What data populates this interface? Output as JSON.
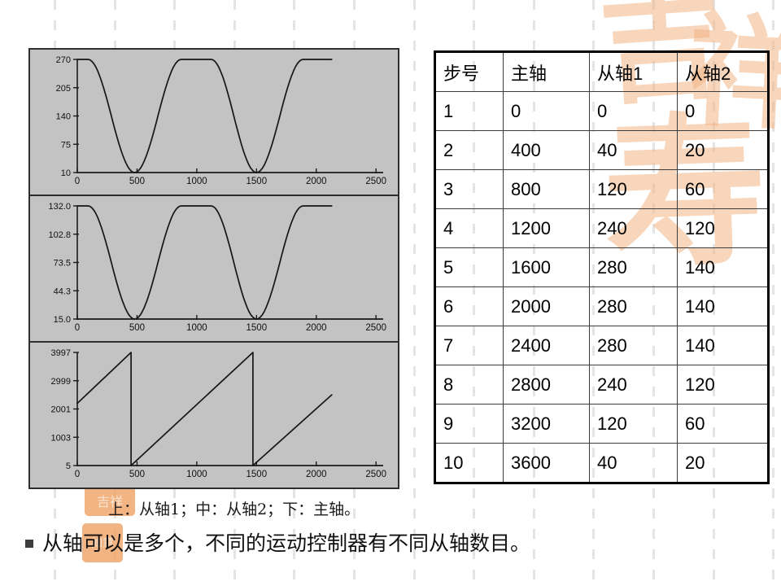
{
  "slide": {
    "caption": "上：从轴1；中：从轴2；下：主轴。",
    "bullet": "从轴可以是多个，不同的运动控制器有不同从轴数目。"
  },
  "decor": {
    "watermark_chars": [
      "吉",
      "祥",
      "寿"
    ],
    "watermark_color": "#f2b586",
    "seal_texts": [
      "吉祥",
      "如意"
    ]
  },
  "table": {
    "headers": [
      "步号",
      "主轴",
      "从轴1",
      "从轴2"
    ],
    "rows": [
      [
        "1",
        "0",
        "0",
        "0"
      ],
      [
        "2",
        "400",
        "40",
        "20"
      ],
      [
        "3",
        "800",
        "120",
        "60"
      ],
      [
        "4",
        "1200",
        "240",
        "120"
      ],
      [
        "5",
        "1600",
        "280",
        "140"
      ],
      [
        "6",
        "2000",
        "280",
        "140"
      ],
      [
        "7",
        "2400",
        "280",
        "140"
      ],
      [
        "8",
        "2800",
        "240",
        "120"
      ],
      [
        "9",
        "3200",
        "120",
        "60"
      ],
      [
        "10",
        "3600",
        "40",
        "20"
      ]
    ]
  },
  "chart_data": [
    {
      "type": "line",
      "series_name": "从轴1",
      "position": "top",
      "ylim": [
        10,
        270
      ],
      "yticks": [
        "10",
        "75",
        "140",
        "205",
        "270"
      ],
      "xticks": [
        "0",
        "500",
        "1000",
        "1500",
        "2000",
        "2500"
      ],
      "xtick_values": [
        0,
        500,
        1000,
        1500,
        2000,
        2500
      ],
      "xlim": [
        0,
        2560
      ],
      "grid": false,
      "segments": [
        [
          0,
          90,
          270,
          270,
          "flat"
        ],
        [
          90,
          480,
          270,
          10,
          "cos"
        ],
        [
          480,
          870,
          10,
          270,
          "cos"
        ],
        [
          870,
          1120,
          270,
          270,
          "flat"
        ],
        [
          1120,
          1500,
          270,
          10,
          "cos"
        ],
        [
          1500,
          1890,
          10,
          270,
          "cos"
        ],
        [
          1890,
          2130,
          270,
          270,
          "flat"
        ]
      ]
    },
    {
      "type": "line",
      "series_name": "从轴2",
      "position": "middle",
      "ylim": [
        15,
        132
      ],
      "yticks": [
        "15.0",
        "44.3",
        "73.5",
        "102.8",
        "132.0"
      ],
      "xticks": [
        "0",
        "500",
        "1000",
        "1500",
        "2000",
        "2500"
      ],
      "xtick_values": [
        0,
        500,
        1000,
        1500,
        2000,
        2500
      ],
      "xlim": [
        0,
        2560
      ],
      "grid": false,
      "segments": [
        [
          0,
          90,
          132,
          132,
          "flat"
        ],
        [
          90,
          480,
          132,
          15,
          "cos"
        ],
        [
          480,
          870,
          15,
          132,
          "cos"
        ],
        [
          870,
          1120,
          132,
          132,
          "flat"
        ],
        [
          1120,
          1500,
          132,
          15,
          "cos"
        ],
        [
          1500,
          1890,
          15,
          132,
          "cos"
        ],
        [
          1890,
          2130,
          132,
          132,
          "flat"
        ]
      ]
    },
    {
      "type": "line",
      "series_name": "主轴",
      "position": "bottom",
      "ylim": [
        5,
        3997
      ],
      "yticks": [
        "5",
        "1003",
        "2001",
        "2999",
        "3997"
      ],
      "xticks": [
        "0",
        "500",
        "1000",
        "1500",
        "2000",
        "2500"
      ],
      "xtick_values": [
        0,
        500,
        1000,
        1500,
        2000,
        2500
      ],
      "xlim": [
        0,
        2560
      ],
      "grid": false,
      "segments": [
        [
          0,
          450,
          2200,
          3997,
          "lin"
        ],
        [
          450,
          450,
          3997,
          5,
          "lin"
        ],
        [
          450,
          1470,
          5,
          3997,
          "lin"
        ],
        [
          1470,
          1470,
          3997,
          5,
          "lin"
        ],
        [
          1470,
          2130,
          5,
          2500,
          "lin"
        ]
      ]
    }
  ]
}
